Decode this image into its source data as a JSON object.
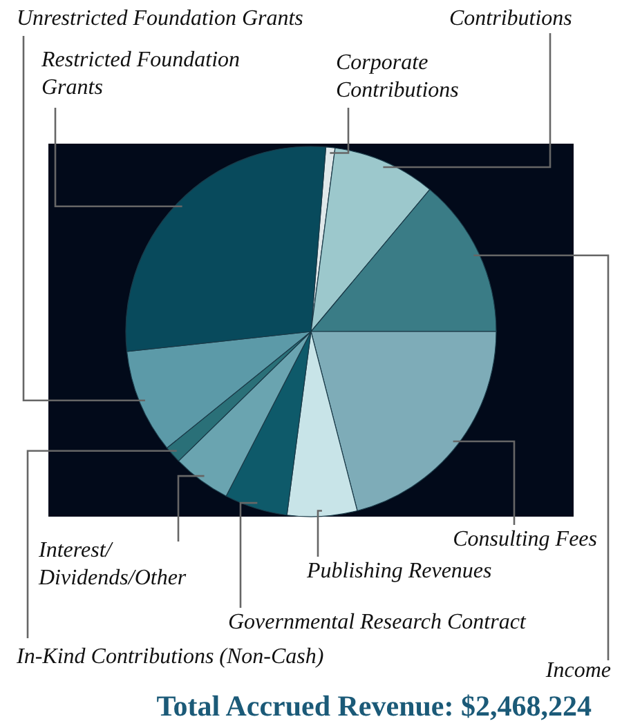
{
  "chart_data": {
    "type": "pie",
    "title": "Total Accrued Revenue: $2,468,224",
    "categories": [
      "Corporate Contributions",
      "Contributions",
      "Income",
      "Consulting Fees",
      "Publishing Revenues",
      "Governmental Research Contract",
      "Interest/Dividends/Other",
      "In-Kind Contributions (Non-Cash)",
      "Unrestricted Foundation Grants",
      "Restricted Foundation Grants"
    ],
    "values": [
      0.8,
      9.0,
      13.9,
      21.0,
      6.1,
      5.5,
      5.1,
      1.5,
      9.1,
      28.0
    ],
    "colors": [
      "#e0e8ea",
      "#9cc8cc",
      "#3a7c86",
      "#7eacb8",
      "#c8e4e8",
      "#0e5a6a",
      "#6aa4b0",
      "#2a7078",
      "#5c9aa8",
      "#084a5c"
    ]
  }
}
